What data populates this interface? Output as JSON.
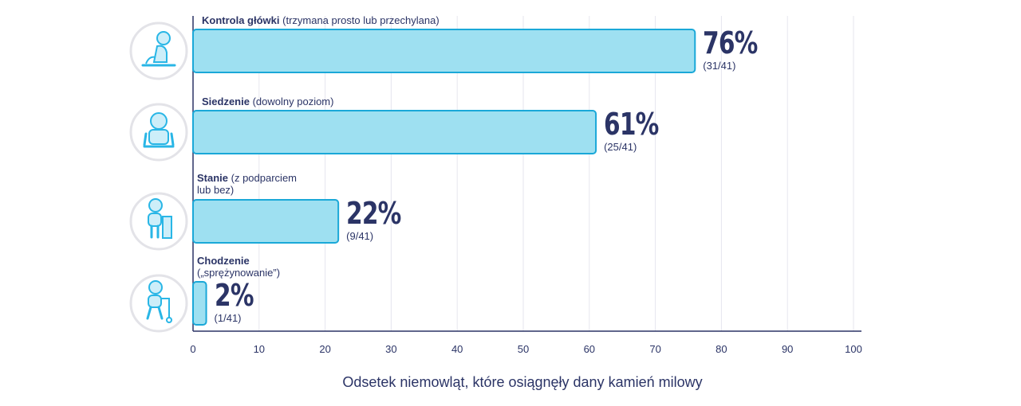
{
  "chart_data": {
    "type": "bar",
    "orientation": "horizontal",
    "categories": [
      {
        "name": "Kontrola główki",
        "description": "(trzymana prosto lub przechylana)",
        "value": 76,
        "fraction": "(31/41)",
        "pct_label": "76%",
        "icon": "baby-head-control-icon",
        "label_lines": [
          "(trzymana prosto lub przechylana)"
        ]
      },
      {
        "name": "Siedzenie",
        "description": "(dowolny poziom)",
        "value": 61,
        "fraction": "(25/41)",
        "pct_label": "61%",
        "icon": "baby-sitting-icon",
        "label_lines": [
          "(dowolny poziom)"
        ]
      },
      {
        "name": "Stanie",
        "description": "(z podparciem lub bez)",
        "value": 22,
        "fraction": "(9/41)",
        "pct_label": "22%",
        "icon": "baby-standing-icon",
        "label_lines": [
          "(z podparciem",
          "lub bez)"
        ]
      },
      {
        "name": "Chodzenie",
        "description": "(„sprężynowanie”)",
        "value": 2,
        "fraction": "(1/41)",
        "pct_label": "2%",
        "icon": "baby-walking-icon",
        "label_lines": [
          "(„sprężynowanie”)"
        ]
      }
    ],
    "xlim": [
      0,
      100
    ],
    "xticks": [
      0,
      10,
      20,
      30,
      40,
      50,
      60,
      70,
      80,
      90,
      100
    ],
    "xlabel": "Odsetek niemowląt, które osiągnęły dany kamień milowy",
    "grid": true,
    "colors": {
      "bar_fill": "#9ee0f1",
      "bar_stroke": "#1aa8d8",
      "text": "#2b3466",
      "axis": "#2b3466",
      "grid": "#e6e6ee",
      "icon_circle_fill": "#ffffff",
      "icon_circle_stroke": "#e3e3e8",
      "icon": "#29b6e6"
    }
  }
}
